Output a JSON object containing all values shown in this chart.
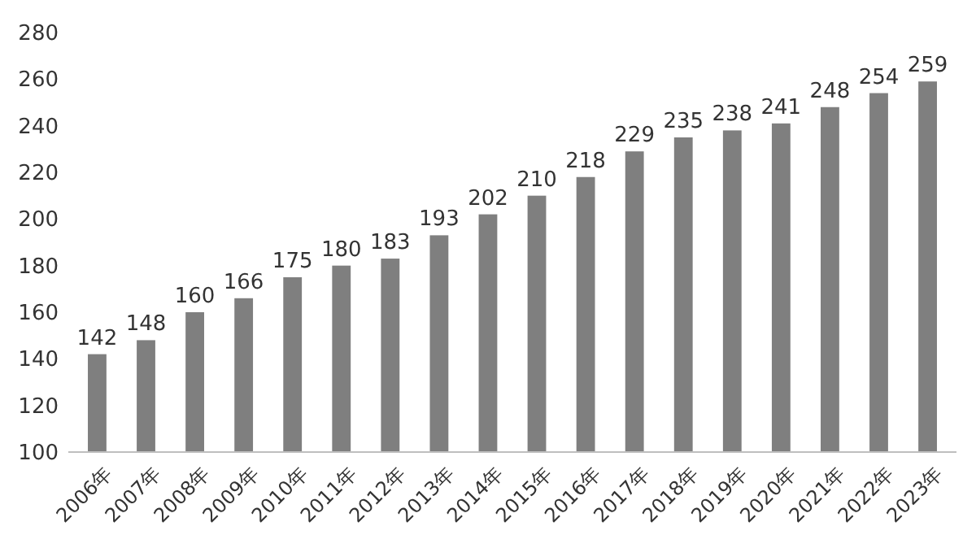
{
  "chart_data": {
    "type": "bar",
    "categories": [
      "2006年",
      "2007年",
      "2008年",
      "2009年",
      "2010年",
      "2011年",
      "2012年",
      "2013年",
      "2014年",
      "2015年",
      "2016年",
      "2017年",
      "2018年",
      "2019年",
      "2020年",
      "2021年",
      "2022年",
      "2023年"
    ],
    "values": [
      142,
      148,
      160,
      166,
      175,
      180,
      183,
      193,
      202,
      210,
      218,
      229,
      235,
      238,
      241,
      248,
      254,
      259
    ],
    "color": "#7f7f7f",
    "ylim": [
      100,
      280
    ],
    "yticks": [
      100,
      120,
      140,
      160,
      180,
      200,
      220,
      240,
      260,
      280
    ],
    "data_labels": true
  }
}
